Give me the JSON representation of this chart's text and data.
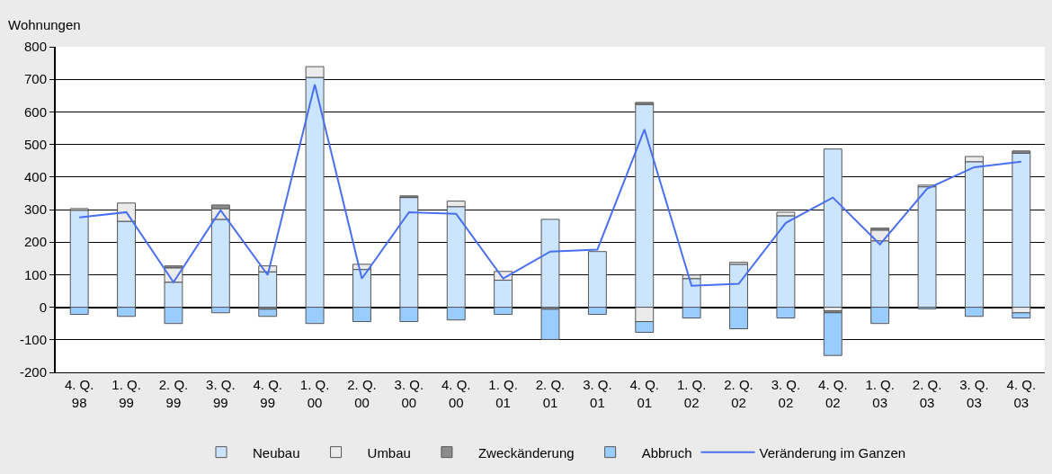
{
  "chart_data": {
    "type": "bar",
    "stacked": true,
    "ylabel": "Wohnungen",
    "categories": [
      "4. Q.\n98",
      "1. Q.\n99",
      "2. Q.\n99",
      "3. Q.\n99",
      "4. Q.\n99",
      "1. Q.\n00",
      "2. Q.\n00",
      "3. Q.\n00",
      "4. Q.\n00",
      "1. Q.\n01",
      "2. Q.\n01",
      "3. Q.\n01",
      "4. Q.\n01",
      "1. Q.\n02",
      "2. Q.\n02",
      "3. Q.\n02",
      "4. Q.\n02",
      "1. Q.\n03",
      "2. Q.\n03",
      "3. Q.\n03",
      "4. Q.\n03"
    ],
    "series": [
      {
        "name": "Neubau",
        "color": "#cce5ff",
        "values": [
          298,
          264,
          77,
          270,
          109,
          706,
          116,
          337,
          309,
          83,
          270,
          171,
          623,
          88,
          132,
          281,
          486,
          204,
          370,
          447,
          473
        ]
      },
      {
        "name": "Umbau",
        "color": "#ebebeb",
        "values": [
          5,
          56,
          44,
          33,
          18,
          33,
          16,
          null,
          17,
          27,
          null,
          null,
          -44,
          11,
          6,
          11,
          -11,
          33,
          5,
          16,
          -17
        ]
      },
      {
        "name": "Zweckänderung",
        "color": "#8c8c8c",
        "values": [
          null,
          null,
          6,
          11,
          -6,
          null,
          null,
          5,
          null,
          null,
          -6,
          null,
          6,
          null,
          null,
          null,
          -6,
          6,
          null,
          null,
          7
        ]
      },
      {
        "name": "Abbruch",
        "color": "#99ccff",
        "values": [
          -22,
          -28,
          -50,
          -17,
          -22,
          -50,
          -44,
          -44,
          -39,
          -22,
          -93,
          -22,
          -33,
          -33,
          -66,
          -33,
          -131,
          -50,
          -5,
          -28,
          -16
        ]
      },
      {
        "name": "Veränderung im Ganzen",
        "type": "line",
        "color": "#4a6ff0",
        "values": [
          276,
          292,
          77,
          298,
          99,
          684,
          88,
          292,
          287,
          88,
          171,
          177,
          546,
          66,
          72,
          259,
          337,
          193,
          364,
          430,
          447
        ]
      }
    ],
    "ylim": [
      -200,
      800
    ],
    "yticks": [
      -200,
      -100,
      0,
      100,
      200,
      300,
      400,
      500,
      600,
      700,
      800
    ],
    "grid": "y",
    "legend": "bottom",
    "marker": "none",
    "line_style": "solid"
  }
}
